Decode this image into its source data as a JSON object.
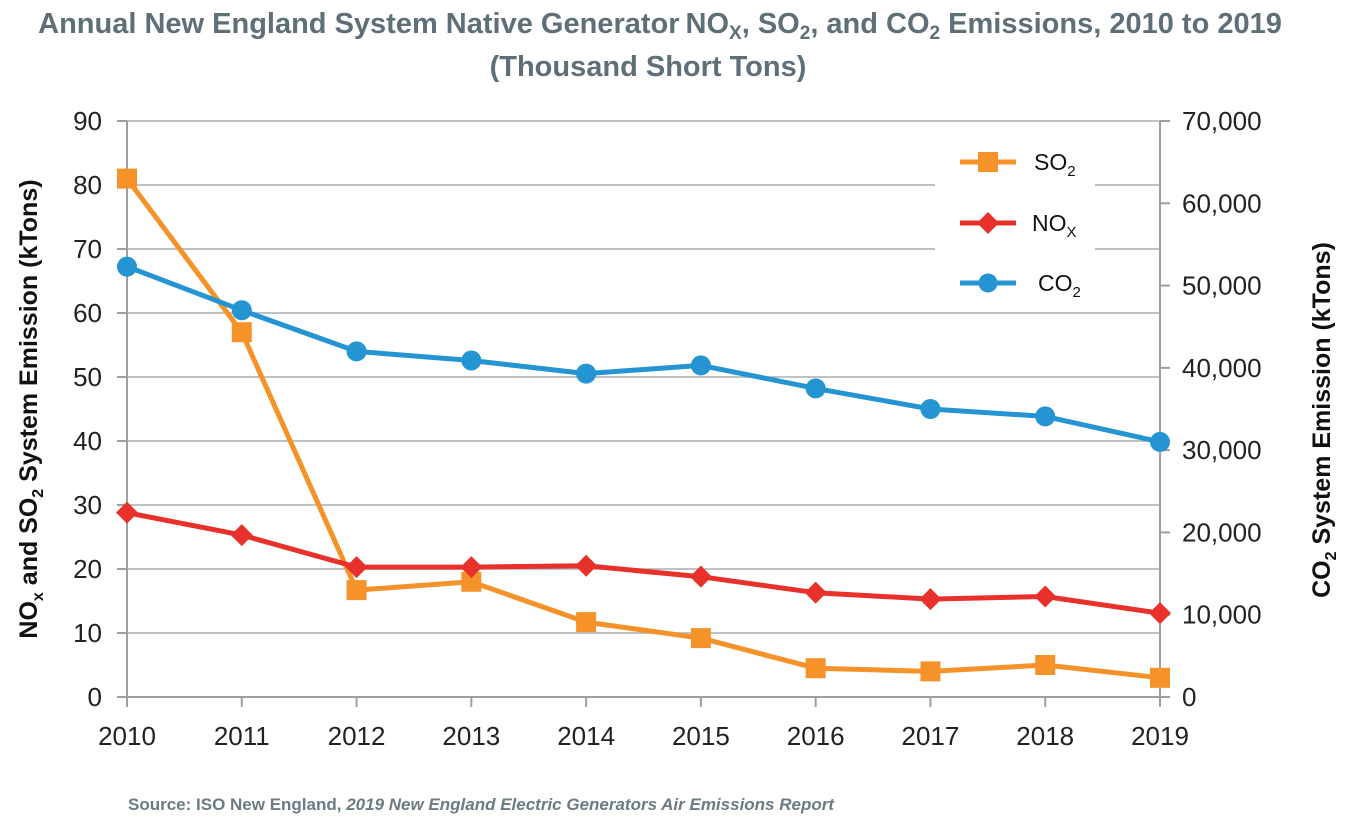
{
  "chart_data": {
    "type": "line",
    "title_line1_part1": "Annual New England System Native Generator",
    "title_nox": "NO",
    "title_nox_sub": "X",
    "title_sep1": ", ",
    "title_so2": "SO",
    "title_sub2": "2",
    "title_sep2": ", and ",
    "title_co2": "CO",
    "title_line1_part2": " Emissions, 2010 to 2019",
    "title_line2": "(Thousand Short Tons)",
    "x": [
      "2010",
      "2011",
      "2012",
      "2013",
      "2014",
      "2015",
      "2016",
      "2017",
      "2018",
      "2019"
    ],
    "y_left": {
      "label_nox": "NO",
      "label_nox_sub": "x",
      "label_and": " and SO",
      "label_sub": "2",
      "label_rest": " System Emission (kTons)",
      "ylim": [
        0,
        90
      ],
      "ticks": [
        "0",
        "10",
        "20",
        "30",
        "40",
        "50",
        "60",
        "70",
        "80",
        "90"
      ]
    },
    "y_right": {
      "label_co": "CO",
      "label_sub": "2",
      "label_rest": " System Emission (kTons)",
      "ylim": [
        0,
        70000
      ],
      "ticks": [
        "0",
        "10,000",
        "20,000",
        "30,000",
        "40,000",
        "50,000",
        "60,000",
        "70,000"
      ]
    },
    "grid": true,
    "legend_position": "top-right",
    "series": [
      {
        "name": "SO2",
        "legend_main": "SO",
        "legend_sub": "2",
        "axis": "left",
        "color": "#f5922a",
        "marker": "square",
        "values": [
          81,
          57,
          16.7,
          18,
          11.7,
          9.2,
          4.5,
          4,
          5,
          3
        ]
      },
      {
        "name": "NOX",
        "legend_main": "NO",
        "legend_sub": "X",
        "axis": "left",
        "color": "#e8312a",
        "marker": "diamond",
        "values": [
          28.8,
          25.3,
          20.3,
          20.3,
          20.5,
          18.8,
          16.3,
          15.3,
          15.7,
          13.1
        ]
      },
      {
        "name": "CO2",
        "legend_main": "CO",
        "legend_sub": "2",
        "axis": "right",
        "color": "#2494d2",
        "marker": "circle",
        "values": [
          52300,
          47000,
          42000,
          40900,
          39300,
          40300,
          37500,
          35000,
          34100,
          31000
        ]
      }
    ]
  },
  "source": {
    "prefix": "Source: ISO New England, ",
    "report": "2019 New England Electric Generators Air Emissions Report"
  }
}
